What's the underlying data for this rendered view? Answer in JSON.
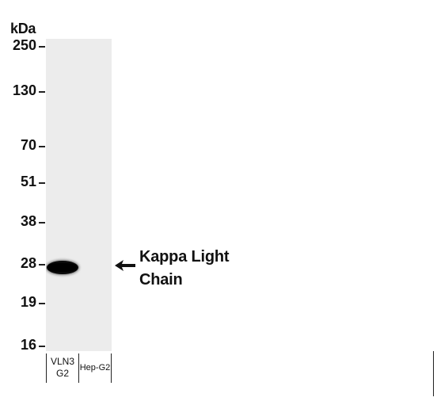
{
  "figure": {
    "unit": "kDa",
    "markers": [
      "250",
      "130",
      "70",
      "51",
      "38",
      "28",
      "19",
      "16"
    ],
    "target_label_line1": "Kappa Light",
    "target_label_line2": "Chain",
    "lanes": [
      {
        "line1": "VLN3",
        "line2": "G2"
      },
      {
        "line1": "Hep-G2"
      }
    ],
    "colors": {
      "membrane": "#ececec",
      "band": "#000000",
      "text": "#111111"
    },
    "icons": [
      "arrow-left-icon"
    ]
  }
}
